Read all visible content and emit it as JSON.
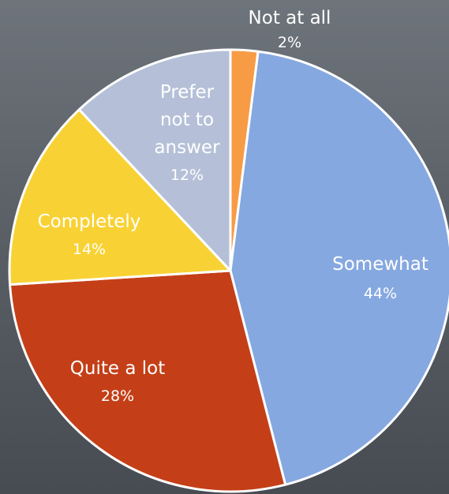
{
  "chart_data": {
    "type": "pie",
    "title": "",
    "slices": [
      {
        "label": "Not at all",
        "value": 2,
        "value_label": "2%",
        "color": "#f79c45"
      },
      {
        "label": "Somewhat",
        "value": 44,
        "value_label": "44%",
        "color": "#86a8e0"
      },
      {
        "label": "Quite a lot",
        "value": 28,
        "value_label": "28%",
        "color": "#c43f17"
      },
      {
        "label": "Completely",
        "value": 14,
        "value_label": "14%",
        "color": "#f8d234"
      },
      {
        "label": "Prefer not to answer",
        "value": 12,
        "value_label": "12%",
        "color": "#b5c0d8"
      }
    ]
  }
}
